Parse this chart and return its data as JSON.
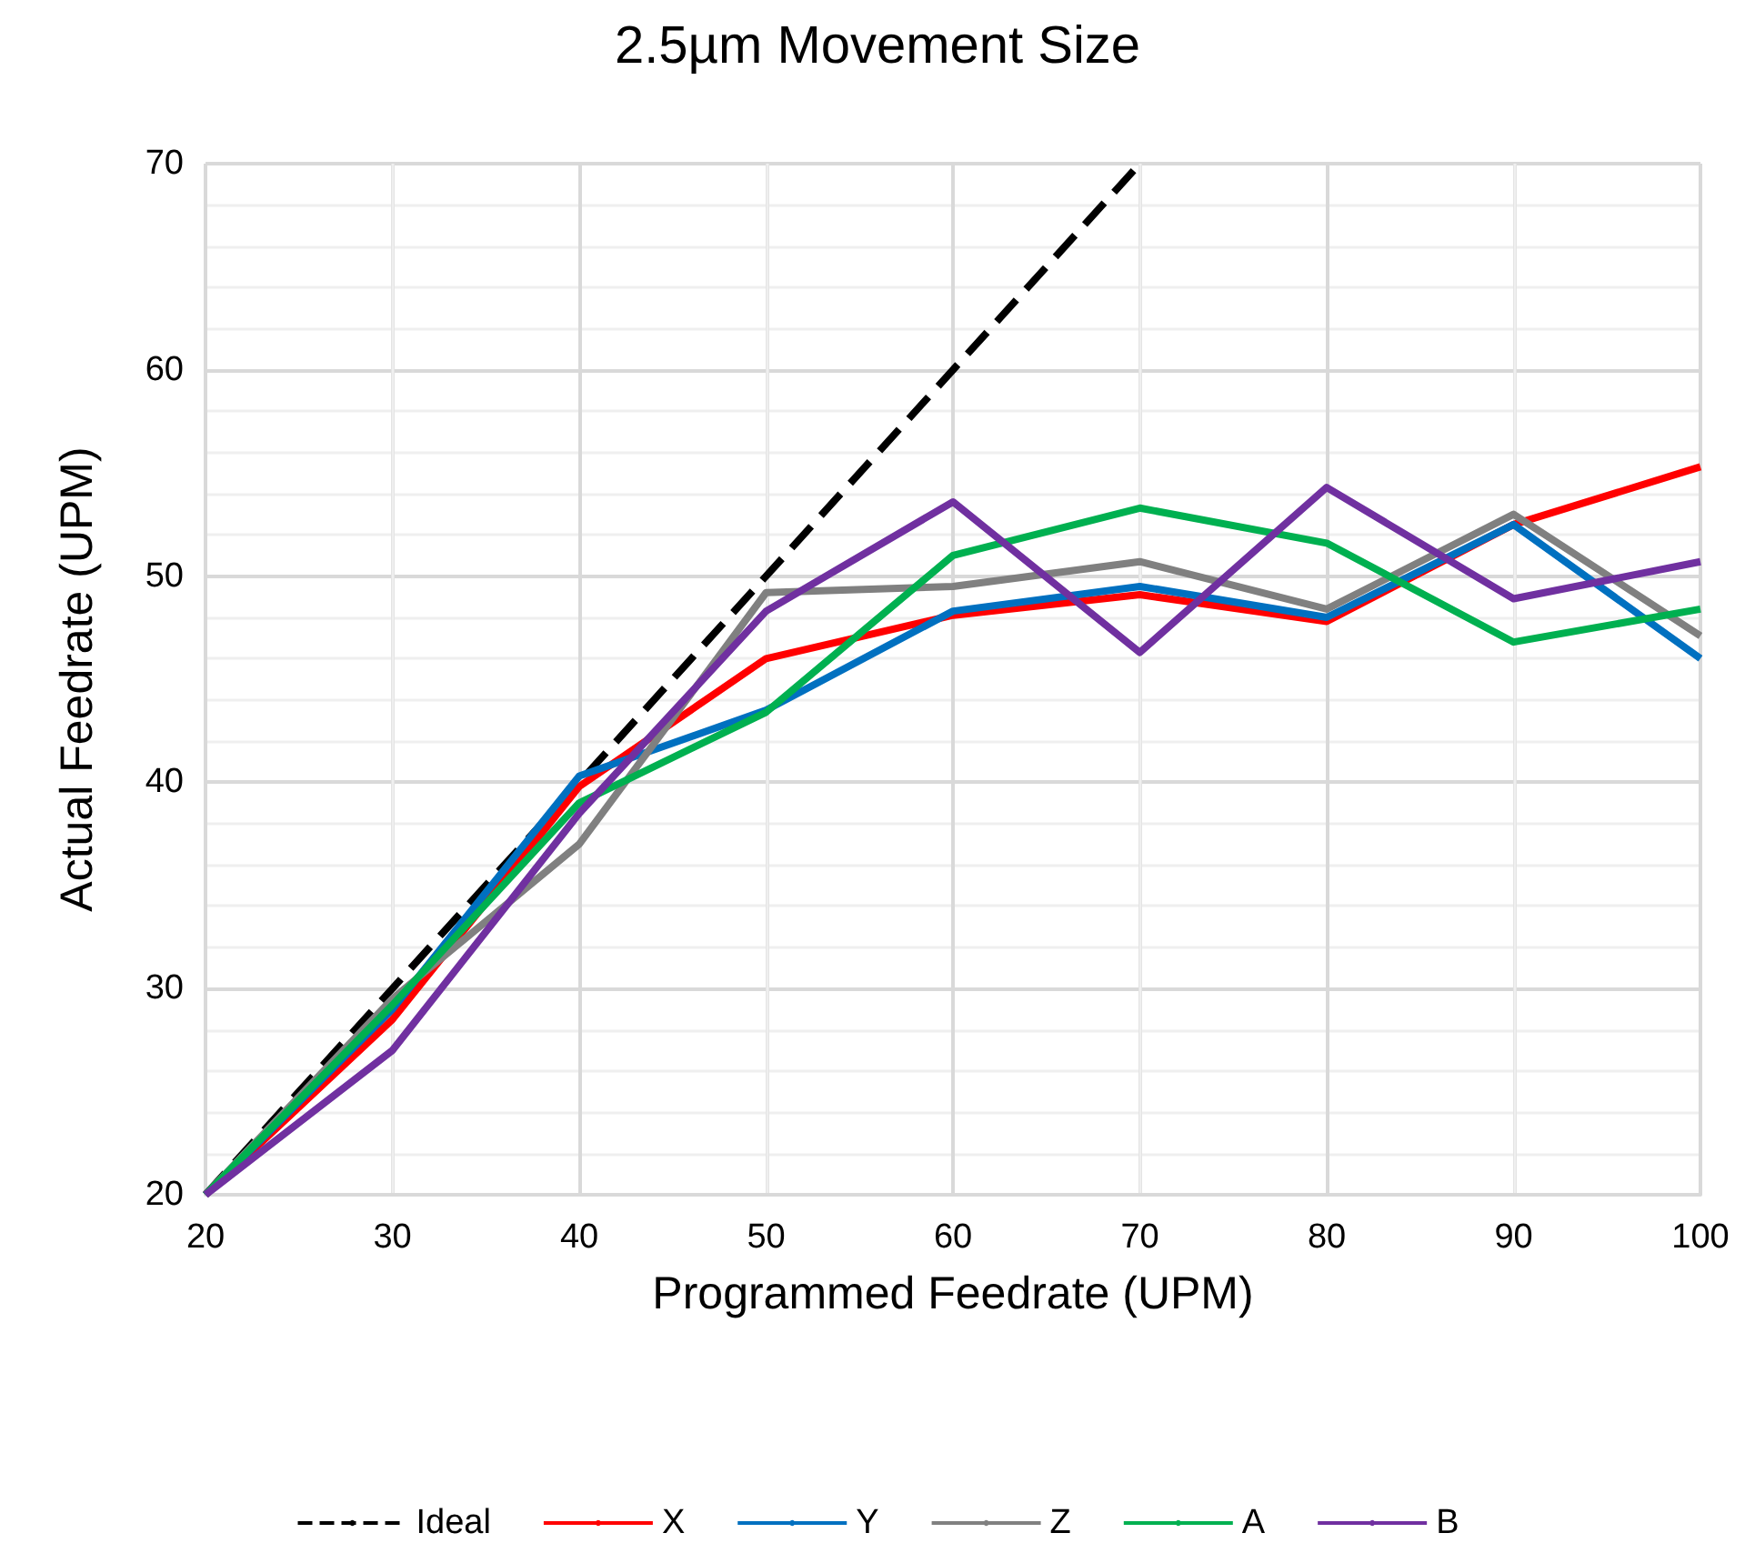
{
  "chart_data": {
    "type": "line",
    "title": "2.5µm Movement Size",
    "xlabel": "Programmed Feedrate (UPM)",
    "ylabel": "Actual Feedrate (UPM)",
    "x": [
      20,
      30,
      40,
      50,
      60,
      70,
      80,
      90,
      100
    ],
    "xlim": [
      20,
      100
    ],
    "xticks": [
      20,
      30,
      40,
      50,
      60,
      70,
      80,
      90,
      100
    ],
    "ylim": [
      20,
      70
    ],
    "yticks": [
      20,
      30,
      40,
      50,
      60,
      70
    ],
    "grid": true,
    "legend": "bottom",
    "marker": "none",
    "series": [
      {
        "name": "Ideal",
        "color": "#000000",
        "line_style": "dashed",
        "x": [
          20,
          70
        ],
        "values": [
          20,
          70
        ]
      },
      {
        "name": "X",
        "color": "#ff0000",
        "line_style": "solid",
        "values": [
          20,
          28.5,
          39.8,
          46,
          48.1,
          49.1,
          47.8,
          52.5,
          55.3
        ]
      },
      {
        "name": "Y",
        "color": "#0070c0",
        "line_style": "solid",
        "values": [
          20,
          29,
          40.3,
          43.5,
          48.3,
          49.5,
          48,
          52.5,
          46
        ]
      },
      {
        "name": "Z",
        "color": "#808080",
        "line_style": "solid",
        "values": [
          20,
          29.5,
          37,
          49.2,
          49.5,
          50.7,
          48.4,
          53,
          47.1
        ]
      },
      {
        "name": "A",
        "color": "#00b050",
        "line_style": "solid",
        "values": [
          20,
          29.2,
          39,
          43.4,
          51,
          53.3,
          51.6,
          46.8,
          48.4
        ]
      },
      {
        "name": "B",
        "color": "#7030a0",
        "line_style": "solid",
        "values": [
          20,
          27,
          38.5,
          48.3,
          53.6,
          46.3,
          54.3,
          48.9,
          50.7
        ]
      }
    ]
  }
}
